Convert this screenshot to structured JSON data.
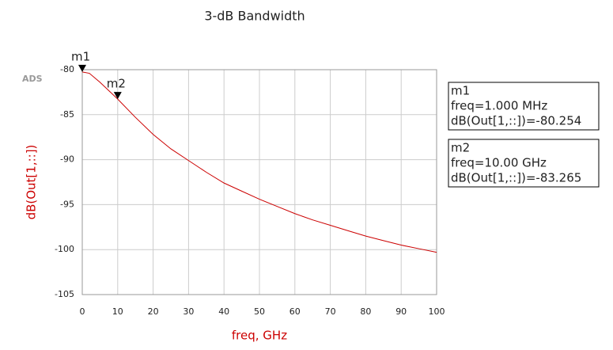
{
  "chart_data": {
    "type": "line",
    "title": "3-dB Bandwidth",
    "watermark": "ADS",
    "x_label": "freq, GHz",
    "y_label": "dB(Out[1,::])",
    "x": [
      0,
      2,
      5,
      10,
      15,
      20,
      25,
      30,
      35,
      40,
      45,
      50,
      55,
      60,
      65,
      70,
      75,
      80,
      85,
      90,
      95,
      100
    ],
    "series": [
      {
        "color": "#cc0000",
        "values": [
          -80.25,
          -80.4,
          -81.4,
          -83.27,
          -85.3,
          -87.2,
          -88.8,
          -90.1,
          -91.4,
          -92.6,
          -93.5,
          -94.4,
          -95.2,
          -96.0,
          -96.7,
          -97.3,
          -97.9,
          -98.5,
          -99.0,
          -99.5,
          -99.9,
          -100.3
        ]
      }
    ],
    "xlim": [
      0,
      100
    ],
    "ylim": [
      -105,
      -80
    ],
    "xticks": [
      0,
      10,
      20,
      30,
      40,
      50,
      60,
      70,
      80,
      90,
      100
    ],
    "yticks": [
      -105,
      -100,
      -95,
      -90,
      -85,
      -80
    ],
    "grid": true,
    "markers": [
      {
        "label": "m1",
        "x": 0.001,
        "y": -80.254,
        "box": [
          "m1",
          "freq=1.000 MHz",
          "dB(Out[1,::])=-80.254"
        ]
      },
      {
        "label": "m2",
        "x": 10,
        "y": -83.265,
        "box": [
          "m2",
          "freq=10.00 GHz",
          "dB(Out[1,::])=-83.265"
        ]
      }
    ]
  }
}
